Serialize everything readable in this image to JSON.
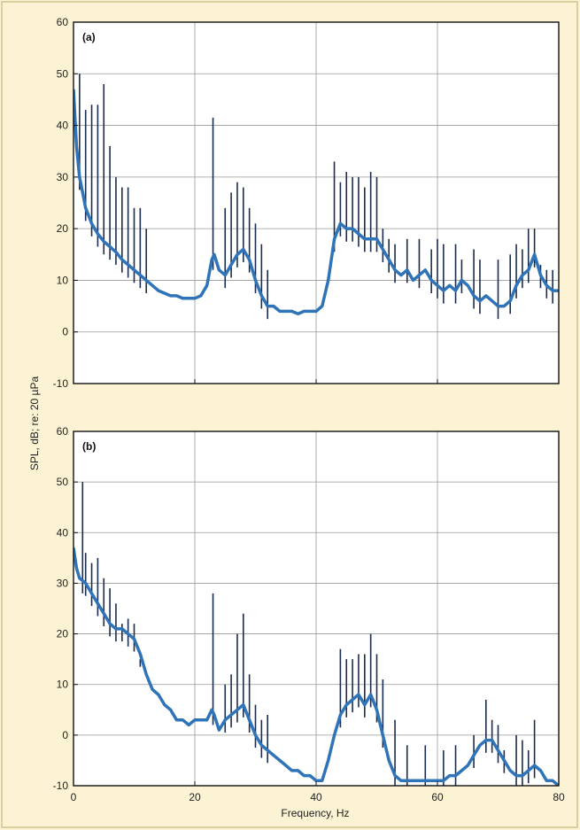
{
  "figure": {
    "background": "#fbf3d3",
    "frame_color": "#d9cfa0",
    "plot_background": "#ffffff",
    "grid_color": "#999999",
    "trace_dark": "#1b2c4d",
    "trace_blue": "#2f73b8"
  },
  "chart_data": [
    {
      "type": "line",
      "panel_label": "(a)",
      "title": "",
      "xlabel": "",
      "ylabel": "SPL, dB; re: 20 µPa",
      "xlim": [
        0,
        80
      ],
      "ylim": [
        -10,
        60
      ],
      "xticks": [
        0,
        20,
        40,
        60,
        80
      ],
      "yticks": [
        -10,
        0,
        10,
        20,
        30,
        40,
        50,
        60
      ],
      "xtick_labels": [
        "0",
        "20",
        "40",
        "60",
        "80"
      ],
      "ytick_labels": [
        "-10",
        "0",
        "10",
        "20",
        "30",
        "40",
        "50",
        "60"
      ],
      "grid": true,
      "series": [
        {
          "x": [
            0,
            0.5,
            1,
            1.5,
            2,
            3,
            4,
            5,
            6,
            7,
            8,
            9,
            10,
            11,
            12,
            13,
            14,
            15,
            16,
            17,
            18,
            19,
            20,
            21,
            22,
            22.8,
            23.2,
            24,
            25,
            26,
            27,
            28,
            29,
            30,
            31,
            32,
            33,
            34,
            35,
            36,
            37,
            38,
            39,
            40,
            41,
            42,
            43,
            44,
            45,
            46,
            47,
            48,
            49,
            50,
            51,
            52,
            53,
            54,
            55,
            56,
            57,
            58,
            59,
            60,
            61,
            62,
            63,
            64,
            65,
            66,
            67,
            68,
            69,
            70,
            71,
            72,
            73,
            74,
            75,
            76,
            77,
            78,
            79,
            80
          ],
          "y": [
            47,
            36,
            30,
            27,
            24,
            21,
            19,
            17.5,
            16.5,
            15.5,
            14,
            13,
            12,
            11,
            10,
            9,
            8,
            7.5,
            7,
            7,
            6.5,
            6.5,
            6.5,
            7,
            9,
            14,
            15,
            12,
            11,
            13,
            15,
            16,
            14,
            10,
            7,
            5,
            5,
            4,
            4,
            4,
            3.5,
            4,
            4,
            4,
            5,
            10,
            18,
            21,
            20,
            20,
            19,
            18,
            18,
            18,
            16,
            14,
            12,
            11,
            12,
            10,
            11,
            12,
            10,
            9,
            8,
            9,
            8,
            10,
            9,
            7,
            6,
            7,
            6,
            5,
            5,
            6,
            9,
            11,
            12,
            15,
            11,
            9,
            8,
            8
          ]
        }
      ],
      "peaks": {
        "x": [
          1,
          2,
          3,
          4,
          5,
          6,
          7,
          8,
          9,
          10,
          11,
          12,
          23,
          25,
          26,
          27,
          28,
          29,
          30,
          31,
          32,
          43,
          44,
          45,
          46,
          47,
          48,
          49,
          50,
          51,
          52,
          53,
          55,
          57,
          59,
          60,
          61,
          63,
          64,
          66,
          67,
          70,
          72,
          73,
          74,
          75,
          76,
          77,
          78,
          79
        ],
        "y": [
          50,
          43,
          44,
          44,
          48,
          36,
          30,
          28,
          28,
          24,
          24,
          20,
          41.5,
          24,
          27,
          29,
          28,
          24,
          21,
          17,
          12,
          33,
          29,
          31,
          30,
          30,
          28,
          31,
          30,
          20,
          18,
          17,
          18,
          18,
          16,
          18,
          17,
          17,
          14,
          16,
          14,
          14,
          15,
          17,
          16,
          20,
          20,
          13,
          12,
          12
        ]
      }
    },
    {
      "type": "line",
      "panel_label": "(b)",
      "title": "",
      "xlabel": "Frequency, Hz",
      "ylabel": "SPL, dB; re: 20 µPa",
      "xlim": [
        0,
        80
      ],
      "ylim": [
        -10,
        60
      ],
      "xticks": [
        0,
        20,
        40,
        60,
        80
      ],
      "yticks": [
        -10,
        0,
        10,
        20,
        30,
        40,
        50,
        60
      ],
      "xtick_labels": [
        "0",
        "20",
        "40",
        "60",
        "80"
      ],
      "ytick_labels": [
        "-10",
        "0",
        "10",
        "20",
        "30",
        "40",
        "50",
        "60"
      ],
      "grid": true,
      "series": [
        {
          "x": [
            0,
            0.5,
            1,
            2,
            3,
            4,
            5,
            6,
            7,
            8,
            9,
            10,
            11,
            12,
            13,
            14,
            15,
            16,
            17,
            18,
            19,
            20,
            21,
            22,
            22.8,
            23.2,
            24,
            25,
            26,
            27,
            28,
            29,
            30,
            31,
            32,
            33,
            34,
            35,
            36,
            37,
            38,
            39,
            40,
            41,
            42,
            43,
            44,
            45,
            46,
            47,
            48,
            49,
            50,
            51,
            52,
            53,
            54,
            55,
            56,
            57,
            58,
            59,
            60,
            61,
            62,
            63,
            64,
            65,
            66,
            67,
            68,
            69,
            70,
            71,
            72,
            73,
            74,
            75,
            76,
            77,
            78,
            79,
            80
          ],
          "y": [
            37,
            33,
            31,
            30,
            28,
            26,
            24,
            22,
            21,
            21,
            20,
            19,
            16,
            12,
            9,
            8,
            6,
            5,
            3,
            3,
            2,
            3,
            3,
            3,
            5,
            4,
            1,
            3,
            4,
            5,
            6,
            3,
            0,
            -2,
            -3,
            -4,
            -5,
            -6,
            -7,
            -7,
            -8,
            -8,
            -9,
            -9,
            -5,
            0,
            4,
            6,
            7,
            8,
            6,
            8,
            5,
            0,
            -5,
            -8,
            -9,
            -9,
            -9,
            -9,
            -9,
            -9,
            -9,
            -9,
            -8,
            -8,
            -7,
            -6,
            -4,
            -2,
            -1,
            -1,
            -3,
            -5,
            -7,
            -8,
            -8,
            -7,
            -6,
            -7,
            -9,
            -9,
            -10
          ]
        }
      ],
      "peaks": {
        "x": [
          1.5,
          2,
          3,
          4,
          5,
          6,
          7,
          8,
          9,
          10,
          11,
          23,
          25,
          26,
          27,
          28,
          29,
          30,
          31,
          32,
          44,
          45,
          46,
          47,
          48,
          49,
          50,
          51,
          53,
          55,
          58,
          61,
          63,
          66,
          68,
          69,
          70,
          71,
          73,
          74,
          75,
          76
        ],
        "y": [
          50,
          36,
          34,
          35,
          31,
          29,
          26,
          22,
          23,
          22,
          15,
          28,
          10,
          12,
          20,
          24,
          12,
          6,
          3,
          4,
          17,
          15,
          15,
          16,
          16,
          20,
          16,
          11,
          3,
          -2,
          -2,
          -3,
          -2,
          0,
          7,
          3,
          2,
          -3,
          0,
          -1,
          -3,
          3
        ]
      }
    }
  ]
}
